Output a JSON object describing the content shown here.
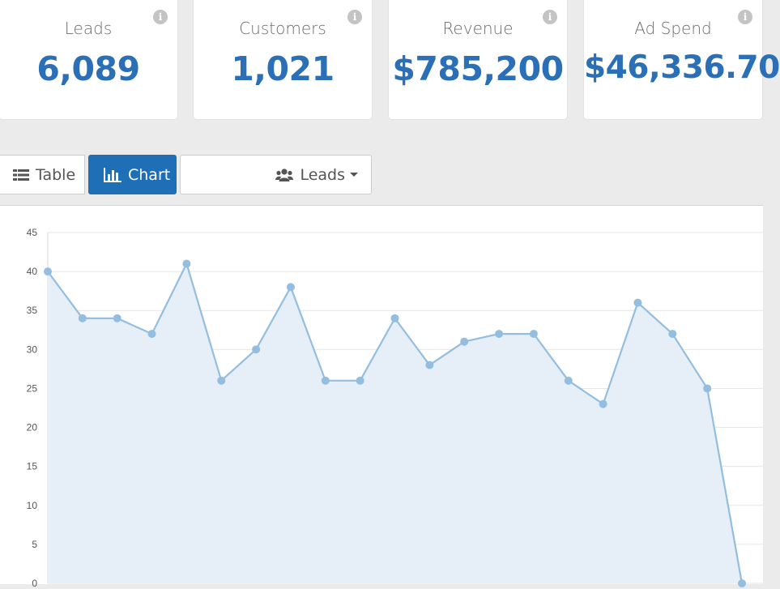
{
  "kpis": [
    {
      "label": "Leads",
      "value": "6,089"
    },
    {
      "label": "Customers",
      "value": "1,021"
    },
    {
      "label": "Revenue",
      "value": "$785,200"
    },
    {
      "label": "Ad Spend",
      "value": "$46,336.70"
    }
  ],
  "info_glyph": "i",
  "toolbar": {
    "table_label": "Table",
    "chart_label": "Chart",
    "metric_label": "Leads"
  },
  "colors": {
    "accent": "#1f6fb6",
    "kpi_value": "#2b6fb6",
    "line": "#93bedf",
    "area": "#e6eff8"
  },
  "icons": [
    "info-icon",
    "list-icon",
    "bar-chart-icon",
    "users-icon",
    "caret-down-icon"
  ],
  "chart_data": {
    "type": "area",
    "title": "",
    "xlabel": "",
    "ylabel": "",
    "ylim": [
      0,
      45
    ],
    "yticks": [
      0,
      5,
      10,
      15,
      20,
      25,
      30,
      35,
      40,
      45
    ],
    "grid": true,
    "series": [
      {
        "values": [
          40,
          34,
          34,
          32,
          41,
          26,
          30,
          38,
          26,
          26,
          34,
          28,
          31,
          32,
          32,
          26,
          23,
          36,
          32,
          25,
          0
        ]
      }
    ]
  }
}
